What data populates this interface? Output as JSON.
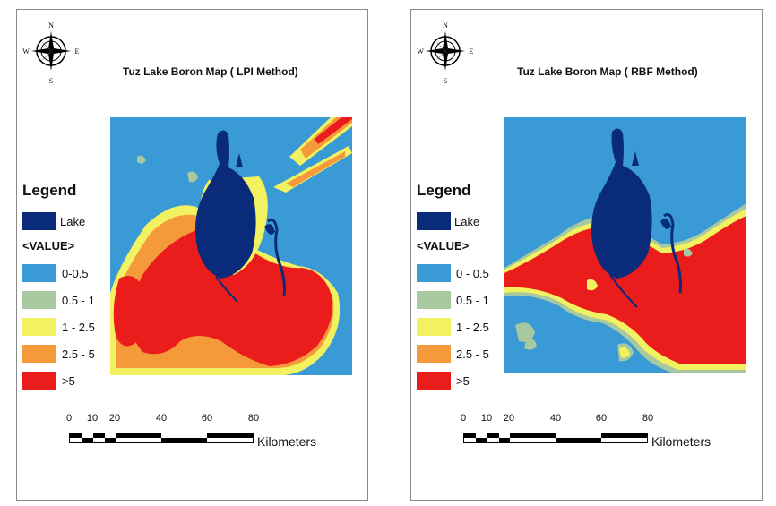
{
  "maps": [
    {
      "title": "Tuz Lake Boron Map ( LPI  Method)",
      "compass": {
        "n": "N",
        "e": "E",
        "s": "S",
        "w": "W"
      },
      "legend": {
        "title": "Legend",
        "lake_label": "Lake",
        "value_header": "<VALUE>",
        "classes": [
          "0-0.5",
          "0.5 - 1",
          "1 - 2.5",
          "2.5 - 5",
          ">5"
        ]
      },
      "scale": {
        "ticks": [
          "0",
          "10",
          "20",
          "40",
          "60",
          "80"
        ],
        "unit": "Kilometers"
      }
    },
    {
      "title": "Tuz Lake Boron Map ( RBF  Method)",
      "compass": {
        "n": "N",
        "e": "E",
        "s": "S",
        "w": "W"
      },
      "legend": {
        "title": "Legend",
        "lake_label": "Lake",
        "value_header": "<VALUE>",
        "classes": [
          "0 - 0.5",
          "0.5 - 1",
          "1 - 2.5",
          "2.5 - 5",
          ">5"
        ]
      },
      "scale": {
        "ticks": [
          "0",
          "10",
          "20",
          "40",
          "60",
          "80"
        ],
        "unit": "Kilometers"
      }
    }
  ],
  "colors": {
    "lake": "#0a2a7a",
    "class_0_0.5": "#3a9ad6",
    "class_0.5_1": "#a8c8a0",
    "class_1_2.5": "#f2f260",
    "class_2.5_5": "#f59a3a",
    "class_gt5": "#ea1c1c"
  }
}
